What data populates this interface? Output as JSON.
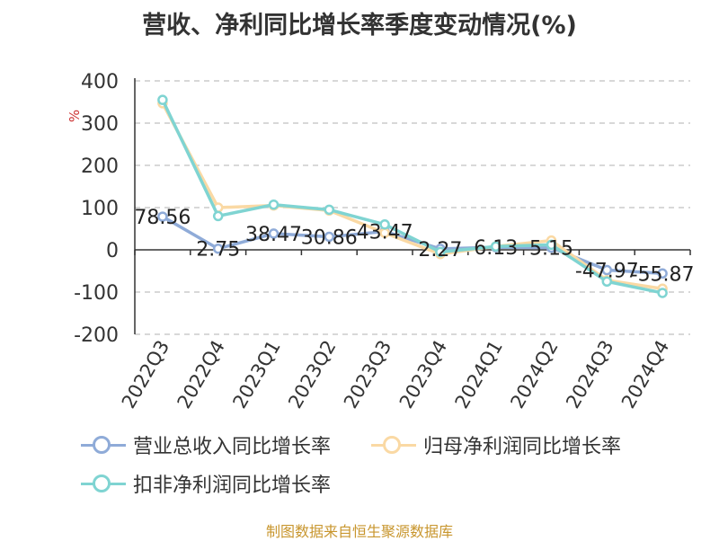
{
  "title": "营收、净利同比增长率季度变动情况(%)",
  "unit_label": "%",
  "source": "制图数据来自恒生聚源数据库",
  "chart_data": {
    "type": "line",
    "title": "营收、净利同比增长率季度变动情况(%)",
    "xlabel": "",
    "ylabel": "%",
    "ylim": [
      -200,
      400
    ],
    "yticks": [
      -200,
      -100,
      0,
      100,
      200,
      300,
      400
    ],
    "grid": true,
    "legend_position": "bottom",
    "categories": [
      "2022Q3",
      "2022Q4",
      "2023Q1",
      "2023Q2",
      "2023Q3",
      "2023Q4",
      "2024Q1",
      "2024Q2",
      "2024Q3",
      "2024Q4"
    ],
    "series": [
      {
        "name": "营业总收入同比增长率",
        "color": "#8fabd8",
        "values": [
          78.56,
          2.75,
          38.47,
          30.86,
          43.47,
          2.27,
          6.13,
          5.15,
          -47.97,
          -55.87
        ],
        "data_labels": [
          "78.56",
          "2.75",
          "38.47",
          "30.86",
          "43.47",
          "2.27",
          "6.13",
          "5.15",
          "-47.97",
          "-55.87"
        ]
      },
      {
        "name": "归母净利润同比增长率",
        "color": "#fad9a4",
        "values": [
          347,
          100,
          105,
          93,
          40,
          -10,
          8,
          22,
          -72,
          -92
        ]
      },
      {
        "name": "扣非净利润同比增长率",
        "color": "#7fd4d2",
        "values": [
          355,
          80,
          107,
          95,
          60,
          -5,
          8,
          12,
          -75,
          -102
        ]
      }
    ]
  }
}
